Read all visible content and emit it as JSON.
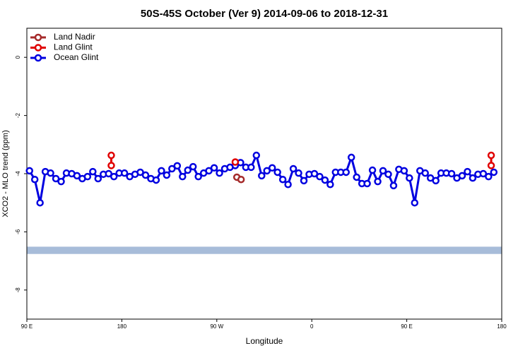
{
  "chart_data": {
    "type": "line",
    "title": "50S-45S October (Ver 9)   2014-09-06 to 2018-12-31",
    "xlabel": "Longitude",
    "ylabel": "XCO2 - MLO trend (ppm)",
    "xlim": [
      90,
      540
    ],
    "ylim": [
      -9,
      1
    ],
    "xticks": [
      {
        "value": 90,
        "label": "90 E"
      },
      180,
      {
        "value": 270,
        "label": "90 W"
      },
      {
        "value": 360,
        "label": "0"
      },
      {
        "value": 450,
        "label": "90 E"
      },
      {
        "value": 540,
        "label": "180"
      }
    ],
    "yticks": [
      0,
      -2,
      -4,
      -6,
      -8
    ],
    "band": {
      "range": [
        -6.76,
        -6.51
      ],
      "color": "#a7bcd9"
    },
    "legend": "top-left",
    "series": [
      {
        "name": "Land Nadir",
        "color": "#a52a2a",
        "x": [
          289,
          293
        ],
        "values": [
          -4.12,
          -4.2
        ]
      },
      {
        "name": "Land Glint",
        "color": "#e00000",
        "x": [
          170,
          170,
          null,
          287.5,
          null,
          530,
          530
        ],
        "values": [
          -3.72,
          -3.37,
          null,
          -3.6,
          null,
          -3.72,
          -3.37
        ]
      },
      {
        "name": "Ocean Glint",
        "color": "#0000e0",
        "x": [
          92.5,
          97.5,
          102.5,
          107.5,
          112.5,
          117.5,
          122.5,
          127.5,
          132.5,
          137.5,
          142.5,
          147.5,
          152.5,
          157.5,
          162.5,
          167.5,
          172.5,
          177.5,
          182.5,
          187.5,
          192.5,
          197.5,
          202.5,
          207.5,
          212.5,
          217.5,
          222.5,
          227.5,
          232.5,
          237.5,
          242.5,
          247.5,
          252.5,
          257.5,
          262.5,
          267.5,
          272.5,
          277.5,
          282.5,
          287.5,
          292.5,
          297.5,
          302.5,
          307.5,
          312.5,
          317.5,
          322.5,
          327.5,
          332.5,
          337.5,
          342.5,
          347.5,
          352.5,
          357.5,
          362.5,
          367.5,
          372.5,
          377.5,
          382.5,
          387.5,
          392.5,
          397.5,
          402.5,
          407.5,
          412.5,
          417.5,
          422.5,
          427.5,
          432.5,
          437.5,
          442.5,
          447.5,
          452.5,
          457.5,
          462.5,
          467.5,
          472.5,
          477.5,
          482.5,
          487.5,
          492.5,
          497.5,
          502.5,
          507.5,
          512.5,
          517.5,
          522.5,
          527.5,
          532.5
        ],
        "values": [
          -3.9,
          -4.2,
          -5.0,
          -3.93,
          -3.98,
          -4.17,
          -4.27,
          -3.98,
          -4.0,
          -4.07,
          -4.17,
          -4.1,
          -3.93,
          -4.17,
          -4.02,
          -4.0,
          -4.1,
          -3.98,
          -3.98,
          -4.1,
          -4.02,
          -3.95,
          -4.05,
          -4.17,
          -4.22,
          -3.9,
          -4.05,
          -3.83,
          -3.73,
          -4.1,
          -3.88,
          -3.76,
          -4.1,
          -3.98,
          -3.9,
          -3.8,
          -3.98,
          -3.83,
          -3.78,
          -3.72,
          -3.62,
          -3.78,
          -3.78,
          -3.37,
          -4.07,
          -3.9,
          -3.8,
          -3.95,
          -4.2,
          -4.37,
          -3.83,
          -3.98,
          -4.24,
          -4.02,
          -4.0,
          -4.1,
          -4.22,
          -4.37,
          -3.95,
          -3.95,
          -3.95,
          -3.44,
          -4.12,
          -4.34,
          -4.34,
          -3.88,
          -4.27,
          -3.9,
          -4.02,
          -4.41,
          -3.85,
          -3.9,
          -4.15,
          -5.0,
          -3.9,
          -3.98,
          -4.15,
          -4.24,
          -3.98,
          -3.98,
          -4.0,
          -4.15,
          -4.07,
          -3.93,
          -4.15,
          -4.02,
          -4.0,
          -4.1,
          -3.95
        ]
      }
    ]
  }
}
